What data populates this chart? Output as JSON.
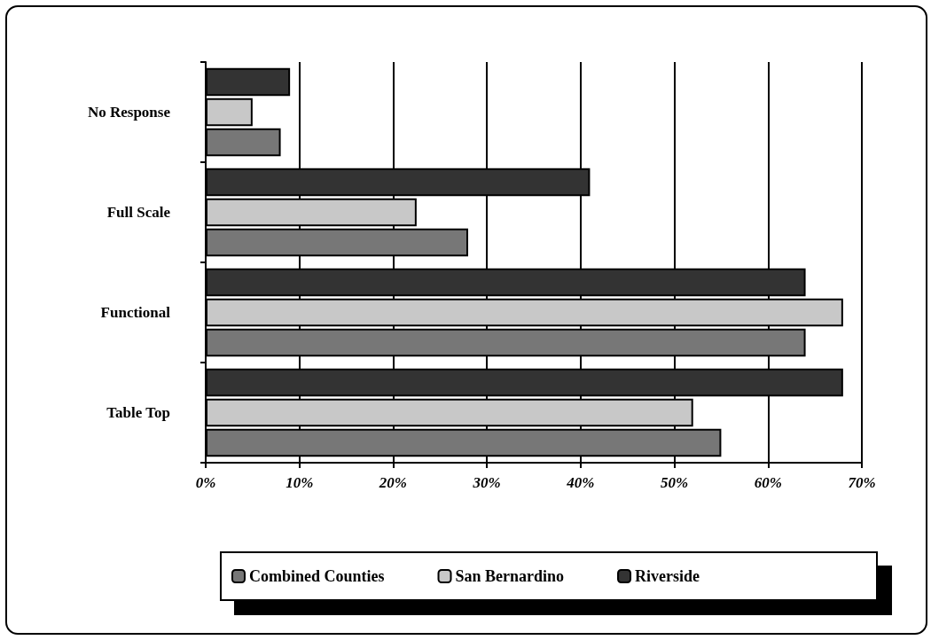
{
  "chart_data": {
    "type": "bar",
    "orientation": "horizontal",
    "categories": [
      "No Response",
      "Full Scale",
      "Functional",
      "Table Top"
    ],
    "series": [
      {
        "name": "Combined Counties",
        "color": "#777777",
        "values": [
          8,
          28,
          64,
          55
        ]
      },
      {
        "name": "San Bernardino",
        "color": "#c8c8c8",
        "values": [
          5,
          22.5,
          68,
          52
        ]
      },
      {
        "name": "Riverside",
        "color": "#333333",
        "values": [
          9,
          41,
          64,
          68
        ]
      }
    ],
    "xlim": [
      0,
      70
    ],
    "xticks": [
      {
        "value": 0,
        "label": "0%"
      },
      {
        "value": 10,
        "label": "10%"
      },
      {
        "value": 20,
        "label": "20%"
      },
      {
        "value": 30,
        "label": "30%"
      },
      {
        "value": 40,
        "label": "40%"
      },
      {
        "value": 50,
        "label": "50%"
      },
      {
        "value": 60,
        "label": "60%"
      },
      {
        "value": 70,
        "label": "70%"
      }
    ],
    "grid": "x",
    "legend": "bottom"
  }
}
